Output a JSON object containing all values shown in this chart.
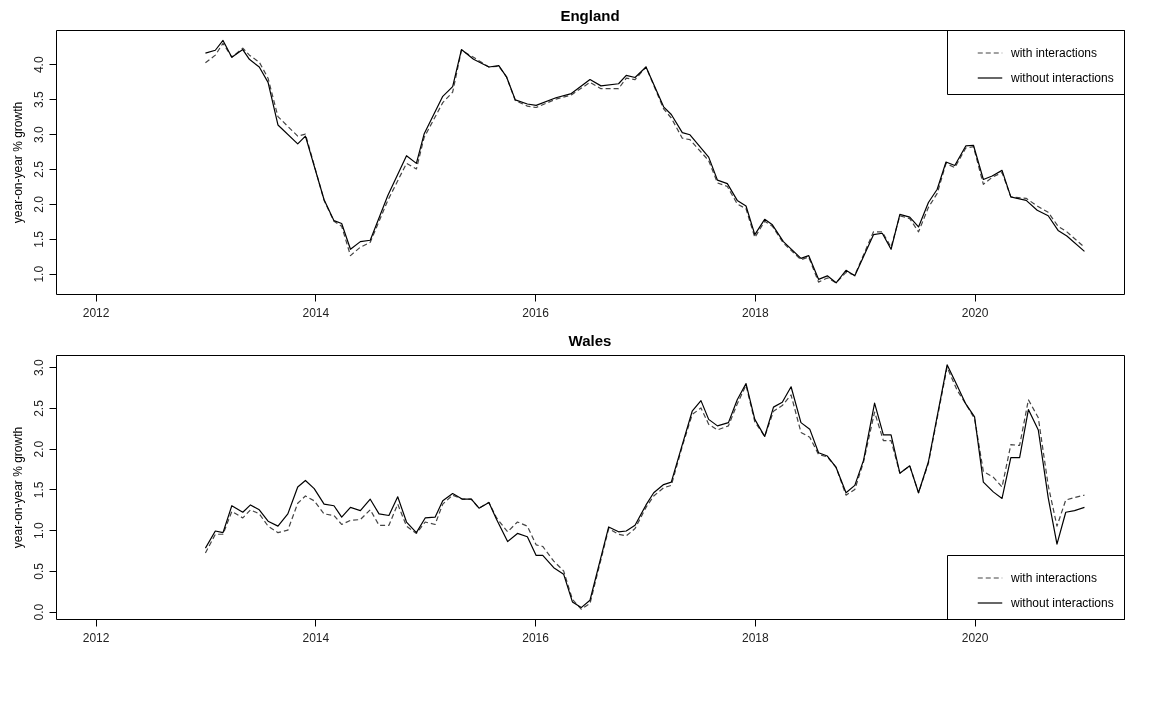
{
  "chart_data": [
    {
      "type": "line",
      "title": "England",
      "ylabel": "year-on-year % growth",
      "legend": "top right",
      "grid": false,
      "xlim": [
        2011.64,
        2021.36
      ],
      "xticks": [
        2012,
        2014,
        2016,
        2018,
        2020
      ],
      "ylim": [
        0.71,
        4.49
      ],
      "yticks": [
        {
          "value": 1,
          "label": "1.0"
        },
        {
          "value": 1.5,
          "label": "1.5"
        },
        {
          "value": 2,
          "label": "2.0"
        },
        {
          "value": 2.5,
          "label": "2.5"
        },
        {
          "value": 3,
          "label": "3.0"
        },
        {
          "value": 3.5,
          "label": "3.5"
        },
        {
          "value": 4,
          "label": "4.0"
        }
      ],
      "x": [
        2013.0,
        2013.09,
        2013.16,
        2013.24,
        2013.34,
        2013.4,
        2013.49,
        2013.57,
        2013.66,
        2013.84,
        2013.91,
        2014.08,
        2014.17,
        2014.24,
        2014.32,
        2014.41,
        2014.5,
        2014.66,
        2014.83,
        2014.92,
        2014.99,
        2015.16,
        2015.25,
        2015.33,
        2015.44,
        2015.58,
        2015.67,
        2015.74,
        2015.82,
        2015.93,
        2016.01,
        2016.19,
        2016.33,
        2016.5,
        2016.6,
        2016.76,
        2016.83,
        2016.91,
        2017.01,
        2017.17,
        2017.24,
        2017.34,
        2017.41,
        2017.58,
        2017.66,
        2017.75,
        2017.84,
        2017.92,
        2018.0,
        2018.09,
        2018.16,
        2018.26,
        2018.42,
        2018.49,
        2018.58,
        2018.66,
        2018.74,
        2018.83,
        2018.91,
        2019.08,
        2019.16,
        2019.24,
        2019.32,
        2019.41,
        2019.49,
        2019.58,
        2019.66,
        2019.74,
        2019.82,
        2019.92,
        2019.99,
        2020.08,
        2020.16,
        2020.25,
        2020.33,
        2020.47,
        2020.57,
        2020.67,
        2020.76,
        2020.84,
        2021.0
      ],
      "series": [
        {
          "name": "with interactions",
          "color": "#444444",
          "line_style": "dashed",
          "values": [
            4.02,
            4.13,
            4.3,
            4.1,
            4.23,
            4.13,
            4.03,
            3.8,
            3.25,
            2.97,
            3.0,
            2.05,
            1.75,
            1.68,
            1.26,
            1.38,
            1.45,
            2.05,
            2.58,
            2.5,
            2.95,
            3.45,
            3.6,
            4.2,
            4.1,
            3.96,
            3.97,
            3.82,
            3.48,
            3.4,
            3.38,
            3.5,
            3.56,
            3.74,
            3.65,
            3.65,
            3.8,
            3.78,
            3.96,
            3.36,
            3.23,
            2.94,
            2.92,
            2.62,
            2.3,
            2.25,
            2.0,
            1.93,
            1.52,
            1.75,
            1.68,
            1.44,
            1.2,
            1.24,
            0.88,
            0.94,
            0.87,
            1.02,
            0.98,
            1.6,
            1.6,
            1.38,
            1.83,
            1.79,
            1.6,
            1.95,
            2.15,
            2.58,
            2.52,
            2.8,
            2.82,
            2.28,
            2.38,
            2.45,
            2.1,
            2.08,
            1.97,
            1.88,
            1.68,
            1.6,
            1.38
          ]
        },
        {
          "name": "without interactions",
          "color": "#000000",
          "line_style": "solid",
          "values": [
            4.16,
            4.2,
            4.34,
            4.1,
            4.21,
            4.07,
            3.96,
            3.74,
            3.13,
            2.86,
            2.97,
            2.06,
            1.76,
            1.72,
            1.35,
            1.46,
            1.48,
            2.12,
            2.69,
            2.58,
            3.0,
            3.54,
            3.68,
            4.21,
            4.07,
            3.96,
            3.98,
            3.82,
            3.49,
            3.43,
            3.41,
            3.52,
            3.58,
            3.78,
            3.69,
            3.72,
            3.84,
            3.81,
            3.96,
            3.39,
            3.28,
            3.02,
            2.99,
            2.67,
            2.34,
            2.29,
            2.05,
            1.97,
            1.56,
            1.78,
            1.7,
            1.46,
            1.22,
            1.26,
            0.92,
            0.97,
            0.87,
            1.05,
            0.97,
            1.56,
            1.58,
            1.35,
            1.85,
            1.81,
            1.67,
            2.02,
            2.21,
            2.6,
            2.55,
            2.83,
            2.84,
            2.35,
            2.4,
            2.48,
            2.1,
            2.05,
            1.91,
            1.83,
            1.62,
            1.54,
            1.32
          ]
        }
      ]
    },
    {
      "type": "line",
      "title": "Wales",
      "ylabel": "year-on-year % growth",
      "legend": "bottom right",
      "grid": false,
      "xlim": [
        2011.64,
        2021.36
      ],
      "xticks": [
        2012,
        2014,
        2016,
        2018,
        2020
      ],
      "ylim": [
        -0.09,
        3.15
      ],
      "yticks": [
        {
          "value": 0,
          "label": "0.0"
        },
        {
          "value": 0.5,
          "label": "0.5"
        },
        {
          "value": 1,
          "label": "1.0"
        },
        {
          "value": 1.5,
          "label": "1.5"
        },
        {
          "value": 2,
          "label": "2.0"
        },
        {
          "value": 2.5,
          "label": "2.5"
        },
        {
          "value": 3,
          "label": "3.0"
        }
      ],
      "x": [
        2013.0,
        2013.09,
        2013.16,
        2013.24,
        2013.34,
        2013.41,
        2013.49,
        2013.57,
        2013.66,
        2013.75,
        2013.84,
        2013.91,
        2013.99,
        2014.08,
        2014.17,
        2014.24,
        2014.32,
        2014.41,
        2014.5,
        2014.58,
        2014.67,
        2014.75,
        2014.83,
        2014.92,
        2015.0,
        2015.09,
        2015.16,
        2015.25,
        2015.34,
        2015.42,
        2015.49,
        2015.58,
        2015.65,
        2015.75,
        2015.84,
        2015.93,
        2016.01,
        2016.07,
        2016.17,
        2016.26,
        2016.34,
        2016.42,
        2016.5,
        2016.67,
        2016.76,
        2016.83,
        2016.91,
        2017.01,
        2017.08,
        2017.17,
        2017.24,
        2017.34,
        2017.43,
        2017.51,
        2017.58,
        2017.66,
        2017.76,
        2017.84,
        2017.92,
        2018.0,
        2018.09,
        2018.17,
        2018.25,
        2018.33,
        2018.42,
        2018.5,
        2018.58,
        2018.66,
        2018.74,
        2018.83,
        2018.91,
        2018.99,
        2019.09,
        2019.17,
        2019.24,
        2019.32,
        2019.41,
        2019.49,
        2019.58,
        2019.75,
        2019.84,
        2019.92,
        2020.0,
        2020.08,
        2020.17,
        2020.25,
        2020.33,
        2020.41,
        2020.49,
        2020.58,
        2020.67,
        2020.75,
        2020.83,
        2020.91,
        2021.0
      ],
      "series": [
        {
          "name": "with interactions",
          "color": "#444444",
          "line_style": "dashed",
          "values": [
            0.72,
            0.95,
            0.95,
            1.23,
            1.15,
            1.25,
            1.2,
            1.05,
            0.97,
            1.0,
            1.33,
            1.42,
            1.36,
            1.2,
            1.18,
            1.07,
            1.12,
            1.13,
            1.25,
            1.06,
            1.06,
            1.32,
            1.05,
            0.96,
            1.1,
            1.07,
            1.32,
            1.43,
            1.38,
            1.38,
            1.27,
            1.34,
            1.15,
            0.98,
            1.1,
            1.05,
            0.82,
            0.8,
            0.62,
            0.5,
            0.15,
            0.03,
            0.1,
            1.02,
            0.95,
            0.93,
            1.02,
            1.28,
            1.42,
            1.52,
            1.55,
            2.03,
            2.42,
            2.5,
            2.3,
            2.23,
            2.28,
            2.55,
            2.78,
            2.33,
            2.15,
            2.46,
            2.53,
            2.66,
            2.2,
            2.14,
            1.93,
            1.9,
            1.77,
            1.43,
            1.5,
            1.84,
            2.45,
            2.1,
            2.1,
            1.7,
            1.79,
            1.46,
            1.82,
            3.0,
            2.72,
            2.55,
            2.37,
            1.72,
            1.65,
            1.53,
            2.05,
            2.04,
            2.6,
            2.38,
            1.55,
            1.05,
            1.37,
            1.4,
            1.43
          ]
        },
        {
          "name": "without interactions",
          "color": "#000000",
          "line_style": "solid",
          "values": [
            0.78,
            0.99,
            0.97,
            1.3,
            1.22,
            1.31,
            1.25,
            1.11,
            1.05,
            1.2,
            1.53,
            1.61,
            1.51,
            1.32,
            1.3,
            1.16,
            1.28,
            1.24,
            1.38,
            1.2,
            1.18,
            1.41,
            1.1,
            0.97,
            1.15,
            1.16,
            1.36,
            1.45,
            1.38,
            1.38,
            1.27,
            1.34,
            1.13,
            0.86,
            0.96,
            0.92,
            0.69,
            0.69,
            0.54,
            0.46,
            0.12,
            0.05,
            0.14,
            1.04,
            0.98,
            0.99,
            1.06,
            1.31,
            1.46,
            1.56,
            1.59,
            2.05,
            2.46,
            2.59,
            2.36,
            2.28,
            2.32,
            2.6,
            2.8,
            2.36,
            2.15,
            2.51,
            2.57,
            2.76,
            2.32,
            2.24,
            1.95,
            1.91,
            1.77,
            1.46,
            1.55,
            1.86,
            2.56,
            2.17,
            2.17,
            1.7,
            1.79,
            1.46,
            1.84,
            3.03,
            2.78,
            2.55,
            2.39,
            1.59,
            1.47,
            1.39,
            1.89,
            1.89,
            2.48,
            2.23,
            1.4,
            0.83,
            1.22,
            1.24,
            1.28
          ]
        }
      ]
    }
  ]
}
